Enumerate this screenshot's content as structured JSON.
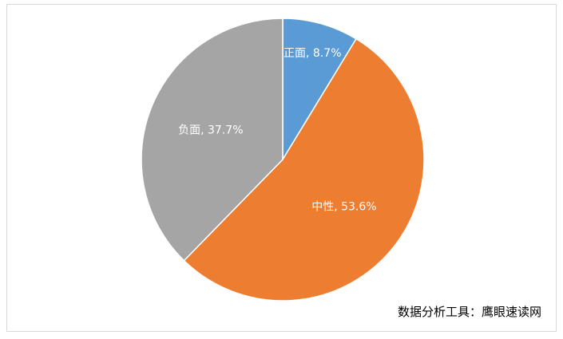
{
  "chart_data": {
    "type": "pie",
    "categories": [
      "正面",
      "中性",
      "负面"
    ],
    "values": [
      8.7,
      53.6,
      37.7
    ],
    "value_labels": [
      "正面, 8.7%",
      "中性, 53.6%",
      "负面, 37.7%"
    ],
    "colors": [
      "#5b9bd5",
      "#ed7d31",
      "#a5a5a5"
    ],
    "annotation": "数据分析工具：鹰眼速读网"
  }
}
